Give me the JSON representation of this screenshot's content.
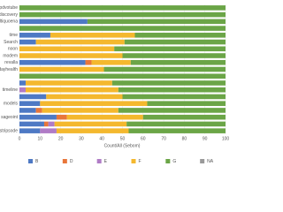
{
  "chart_data": {
    "type": "stacked-barh",
    "x_label": "Count/All (Sebom)",
    "categories": [
      "ecpdvotube",
      "discovery",
      "dtiquoena",
      null,
      "time",
      "Search",
      "noon",
      "modem",
      "revalla",
      "dayhealth",
      null,
      null,
      "timeline",
      null,
      "models",
      null,
      "sageoint",
      null,
      "stripsode"
    ],
    "series": [
      {
        "name": "B",
        "color": "#4e79c4",
        "values": [
          0,
          0,
          33,
          0,
          15,
          8,
          0,
          0,
          32,
          0,
          0,
          3,
          0,
          13,
          10,
          8,
          18,
          12,
          10
        ]
      },
      {
        "name": "D",
        "color": "#e8763a",
        "values": [
          0,
          0,
          0,
          0,
          0,
          0,
          0,
          0,
          3,
          0,
          0,
          0,
          0,
          0,
          0,
          3,
          5,
          2,
          0
        ]
      },
      {
        "name": "E",
        "color": "#b07cc6",
        "values": [
          0,
          0,
          0,
          0,
          0,
          0,
          0,
          0,
          0,
          0,
          0,
          0,
          3,
          0,
          0,
          0,
          0,
          3,
          8
        ]
      },
      {
        "name": "F",
        "color": "#f4b82e",
        "values": [
          0,
          0,
          0,
          0,
          41,
          43,
          46,
          50,
          19,
          41,
          0,
          42,
          45,
          37,
          52,
          37,
          37,
          35,
          35
        ]
      },
      {
        "name": "G",
        "color": "#6ba547",
        "values": [
          100,
          100,
          67,
          100,
          44,
          49,
          54,
          50,
          46,
          59,
          100,
          55,
          52,
          50,
          38,
          52,
          40,
          48,
          47
        ]
      },
      {
        "name": "NA",
        "color": "#9a9a9a",
        "values": [
          0,
          0,
          0,
          0,
          0,
          0,
          0,
          0,
          0,
          0,
          0,
          0,
          0,
          0,
          0,
          0,
          0,
          0,
          0
        ]
      }
    ],
    "xlim": [
      0,
      100
    ],
    "xticks": [
      0,
      10,
      20,
      30,
      40,
      50,
      60,
      70,
      80,
      90,
      100
    ],
    "grid": true
  }
}
